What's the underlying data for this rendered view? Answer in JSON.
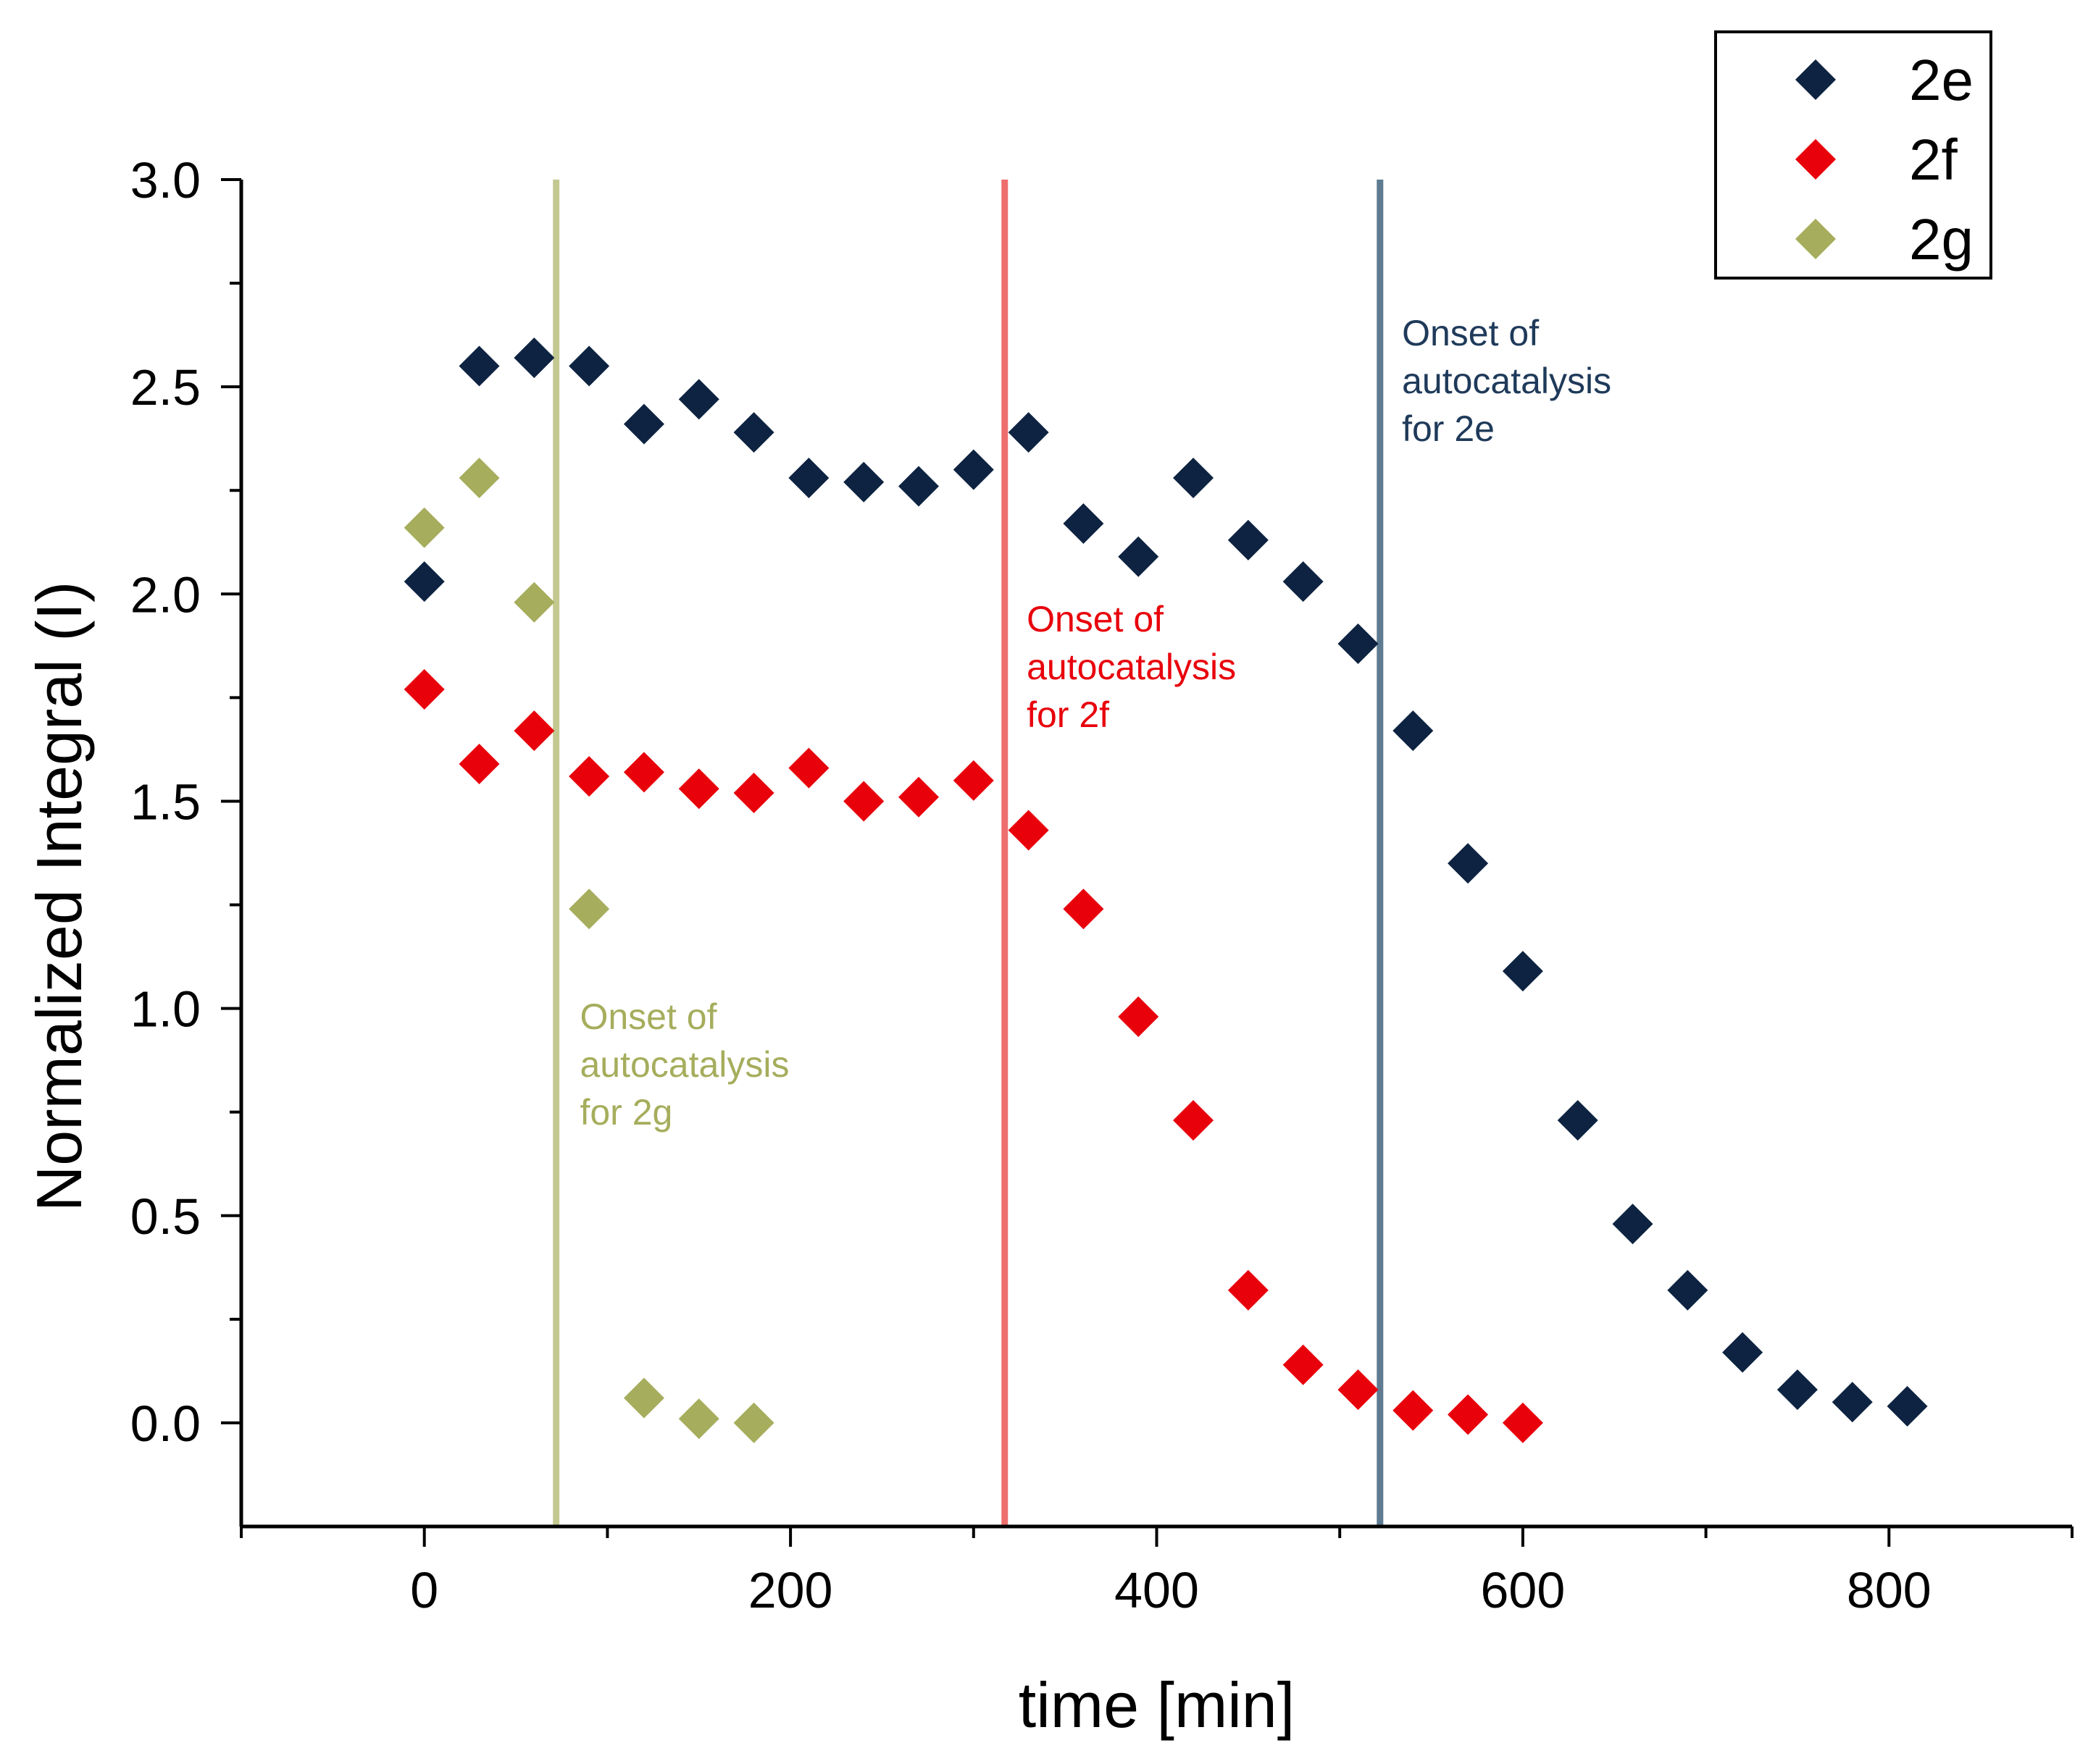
{
  "chart_data": {
    "type": "scatter",
    "title": "",
    "xlabel": "time [min]",
    "ylabel": "Normalized Integral (I)",
    "xlim": [
      -100,
      900
    ],
    "ylim": [
      -0.25,
      3.0
    ],
    "xticks": [
      0,
      200,
      400,
      600,
      800
    ],
    "xtick_labels": [
      "0",
      "200",
      "400",
      "600",
      "800"
    ],
    "yticks": [
      0.0,
      0.5,
      1.0,
      1.5,
      2.0,
      2.5,
      3.0
    ],
    "ytick_labels": [
      "0.0",
      "0.5",
      "1.0",
      "1.5",
      "2.0",
      "2.5",
      "3.0"
    ],
    "grid": false,
    "legend_position": "top-right",
    "series": [
      {
        "name": "2e",
        "marker": "diamond",
        "color": "#0d2341",
        "x": [
          0,
          30,
          60,
          90,
          120,
          150,
          180,
          210,
          240,
          270,
          300,
          330,
          360,
          390,
          420,
          450,
          480,
          510,
          540,
          570,
          600,
          630,
          660,
          690,
          720,
          750,
          780,
          810
        ],
        "y": [
          2.03,
          2.55,
          2.57,
          2.55,
          2.41,
          2.47,
          2.39,
          2.28,
          2.27,
          2.26,
          2.3,
          2.39,
          2.17,
          2.09,
          2.28,
          2.13,
          2.03,
          1.88,
          1.67,
          1.35,
          1.09,
          0.73,
          0.48,
          0.32,
          0.17,
          0.08,
          0.05,
          0.04
        ]
      },
      {
        "name": "2f",
        "marker": "diamond",
        "color": "#e8000b",
        "x": [
          0,
          30,
          60,
          90,
          120,
          150,
          180,
          210,
          240,
          270,
          300,
          330,
          360,
          390,
          420,
          450,
          480,
          510,
          540,
          570,
          600
        ],
        "y": [
          1.77,
          1.59,
          1.67,
          1.56,
          1.57,
          1.53,
          1.52,
          1.58,
          1.5,
          1.51,
          1.55,
          1.43,
          1.24,
          0.98,
          0.73,
          0.32,
          0.14,
          0.08,
          0.03,
          0.02,
          0.0
        ]
      },
      {
        "name": "2g",
        "marker": "diamond",
        "color": "#a6ad5c",
        "x": [
          0,
          30,
          60,
          90,
          120,
          150,
          180
        ],
        "y": [
          2.16,
          2.28,
          1.98,
          1.24,
          0.06,
          0.01,
          0.0
        ]
      }
    ],
    "vlines": [
      {
        "x": 72,
        "color": "#c3c890",
        "series": "2g"
      },
      {
        "x": 317,
        "color": "#ee6e6e",
        "series": "2f"
      },
      {
        "x": 522,
        "color": "#5e7b91",
        "series": "2e"
      }
    ],
    "annotations": [
      {
        "lines": [
          "Onset of",
          "autocatalysis",
          "for 2g"
        ],
        "x": 85,
        "y": 0.95,
        "color": "#a6ad5c"
      },
      {
        "lines": [
          "Onset of",
          "autocatalysis",
          "for 2f"
        ],
        "x": 329,
        "y": 1.91,
        "color": "#e8000b"
      },
      {
        "lines": [
          "Onset of",
          "autocatalysis",
          "for 2e"
        ],
        "x": 534,
        "y": 2.6,
        "color": "#1f3a5a"
      }
    ]
  }
}
